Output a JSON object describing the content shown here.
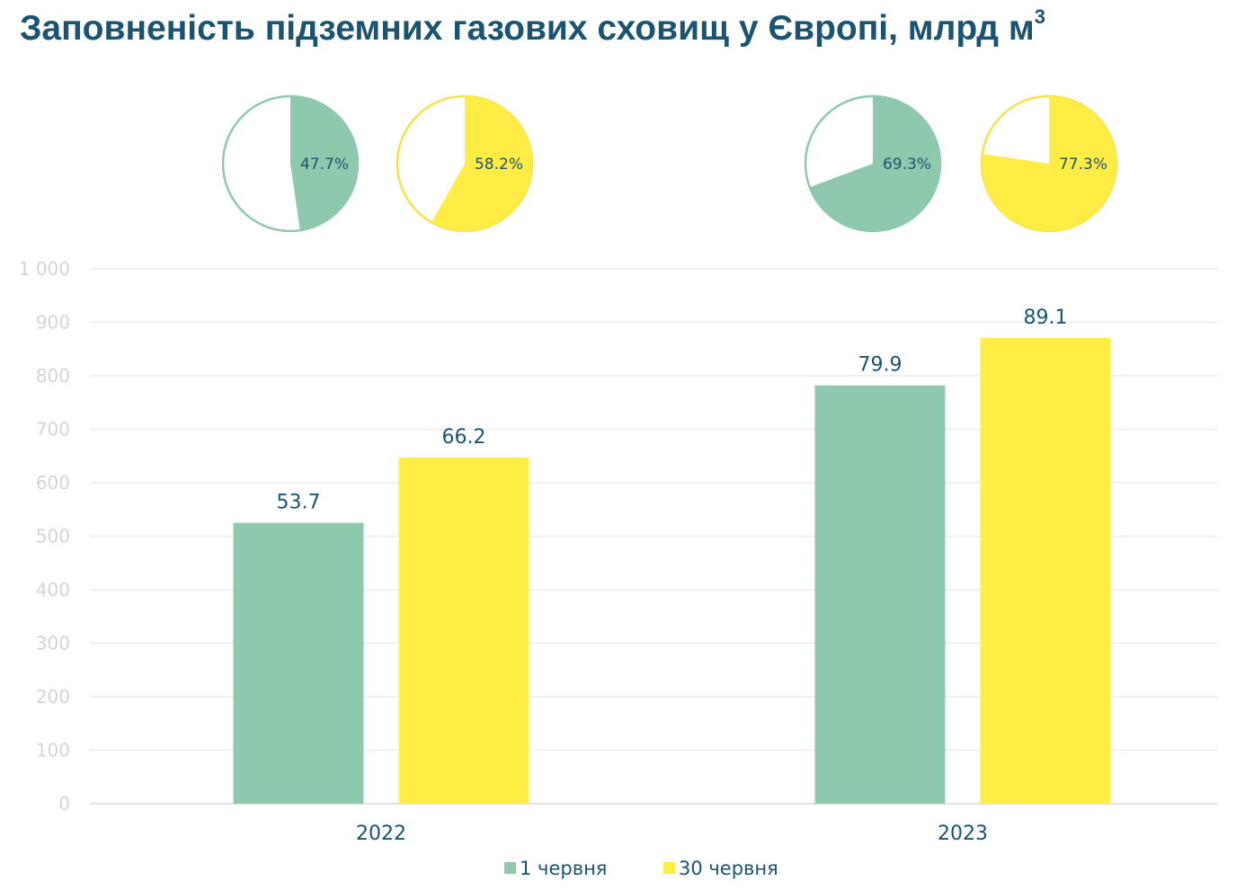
{
  "chart_data": {
    "type": "bar",
    "title": "Заповненість підземних газових сховищ у Європі, млрд м",
    "title_sup": "3",
    "categories": [
      "2022",
      "2023"
    ],
    "series": [
      {
        "name": "1 червня",
        "color": "#8fc9ad",
        "values": [
          525,
          782
        ],
        "labels": [
          "53.7",
          "79.9"
        ],
        "fill_percent": [
          47.7,
          69.3
        ],
        "fill_labels": [
          "47.7%",
          "69.3%"
        ]
      },
      {
        "name": "30 червня",
        "color": "#ffec44",
        "values": [
          647,
          871
        ],
        "labels": [
          "66.2",
          "89.1"
        ],
        "fill_percent": [
          58.2,
          77.3
        ],
        "fill_labels": [
          "58.2%",
          "77.3%"
        ]
      }
    ],
    "ylim": [
      0,
      1000
    ],
    "yticks": [
      {
        "value": 0,
        "label": "0"
      },
      {
        "value": 100,
        "label": "100"
      },
      {
        "value": 200,
        "label": "200"
      },
      {
        "value": 300,
        "label": "300"
      },
      {
        "value": 400,
        "label": "400"
      },
      {
        "value": 500,
        "label": "500"
      },
      {
        "value": 600,
        "label": "600"
      },
      {
        "value": 700,
        "label": "700"
      },
      {
        "value": 800,
        "label": "800"
      },
      {
        "value": 900,
        "label": "900"
      },
      {
        "value": 1000,
        "label": "1 000"
      }
    ],
    "grid": true,
    "legend": "bottom"
  }
}
